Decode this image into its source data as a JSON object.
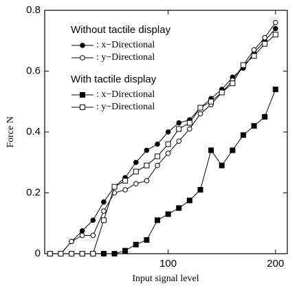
{
  "chart_data": {
    "type": "line",
    "xlabel": "Input signal level",
    "ylabel": "Force N",
    "x": [
      -10,
      0,
      10,
      20,
      30,
      40,
      50,
      60,
      70,
      80,
      90,
      100,
      110,
      120,
      130,
      140,
      150,
      160,
      170,
      180,
      190,
      200
    ],
    "xlim": [
      -15,
      211
    ],
    "xticks": [
      100,
      200
    ],
    "ylim": [
      0,
      0.8
    ],
    "yticks": [
      0,
      0.2,
      0.4,
      0.6,
      0.8
    ],
    "legend_groups": [
      {
        "title": "Without tactile display",
        "series": [
          0,
          1
        ]
      },
      {
        "title": "With tactile display",
        "series": [
          2,
          3
        ]
      }
    ],
    "series": [
      {
        "name": ": x−Directional",
        "color": "#000000",
        "marker": "circle",
        "filled": true,
        "values": [
          0,
          0,
          0.04,
          0.075,
          0.11,
          0.17,
          0.22,
          0.25,
          0.3,
          0.34,
          0.36,
          0.4,
          0.43,
          0.44,
          0.48,
          0.51,
          0.54,
          0.58,
          0.61,
          0.66,
          0.7,
          0.74
        ]
      },
      {
        "name": ": y−Directional",
        "color": "#000000",
        "marker": "circle",
        "filled": false,
        "values": [
          0,
          0,
          0.04,
          0.06,
          0.06,
          0.14,
          0.2,
          0.21,
          0.23,
          0.24,
          0.29,
          0.33,
          0.37,
          0.41,
          0.46,
          0.49,
          0.53,
          0.57,
          0.62,
          0.67,
          0.71,
          0.76
        ]
      },
      {
        "name": ": x−Directional",
        "color": "#000000",
        "marker": "square",
        "filled": true,
        "values": [
          0,
          0,
          0,
          0,
          0,
          0,
          0,
          0.01,
          0.03,
          0.045,
          0.11,
          0.13,
          0.15,
          0.175,
          0.21,
          0.34,
          0.29,
          0.34,
          0.39,
          0.42,
          0.45,
          0.54
        ]
      },
      {
        "name": ": y−Directional",
        "color": "#000000",
        "marker": "square",
        "filled": false,
        "values": [
          0,
          0,
          0,
          0,
          0,
          0.11,
          0.22,
          0.24,
          0.27,
          0.29,
          0.32,
          0.36,
          0.41,
          0.43,
          0.48,
          0.5,
          0.53,
          0.56,
          0.62,
          0.65,
          0.69,
          0.72
        ]
      }
    ]
  }
}
